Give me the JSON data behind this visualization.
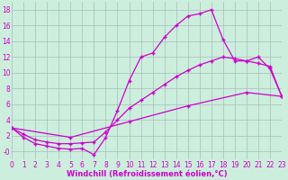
{
  "bg_color": "#cceedd",
  "line_color": "#cc00cc",
  "grid_color": "#aabbbb",
  "line1_x": [
    0,
    1,
    2,
    3,
    4,
    5,
    6,
    7,
    8,
    9,
    10,
    11,
    12,
    13,
    14,
    15,
    16,
    17,
    18,
    19,
    20,
    21,
    22,
    23
  ],
  "line1_y": [
    3.0,
    1.8,
    1.0,
    0.7,
    0.4,
    0.3,
    0.4,
    -0.4,
    1.8,
    5.2,
    9.0,
    12.0,
    12.5,
    14.5,
    16.0,
    17.2,
    17.5,
    18.0,
    14.2,
    11.5,
    11.5,
    12.0,
    10.5,
    7.0
  ],
  "line2_x": [
    0,
    1,
    2,
    3,
    4,
    5,
    6,
    7,
    8,
    9,
    10,
    11,
    12,
    13,
    14,
    15,
    16,
    17,
    18,
    19,
    20,
    21,
    22,
    23
  ],
  "line2_y": [
    3.0,
    2.2,
    1.5,
    1.2,
    1.0,
    1.0,
    1.1,
    1.2,
    2.5,
    4.0,
    5.5,
    6.5,
    7.5,
    8.5,
    9.5,
    10.3,
    11.0,
    11.5,
    12.0,
    11.8,
    11.5,
    11.2,
    10.8,
    7.0
  ],
  "line3_x": [
    0,
    5,
    10,
    15,
    20,
    23
  ],
  "line3_y": [
    3.0,
    1.8,
    3.8,
    5.8,
    7.5,
    7.0
  ],
  "xlim": [
    0,
    23
  ],
  "ylim": [
    -1.0,
    19.0
  ],
  "xticks": [
    0,
    1,
    2,
    3,
    4,
    5,
    6,
    7,
    8,
    9,
    10,
    11,
    12,
    13,
    14,
    15,
    16,
    17,
    18,
    19,
    20,
    21,
    22,
    23
  ],
  "yticks": [
    0,
    2,
    4,
    6,
    8,
    10,
    12,
    14,
    16,
    18
  ],
  "ytick_labels": [
    "-0",
    "2",
    "4",
    "6",
    "8",
    "10",
    "12",
    "14",
    "16",
    "18"
  ],
  "xlabel": "Windchill (Refroidissement éolien,°C)",
  "tick_fontsize": 5.5,
  "axis_label_fontsize": 6.0
}
